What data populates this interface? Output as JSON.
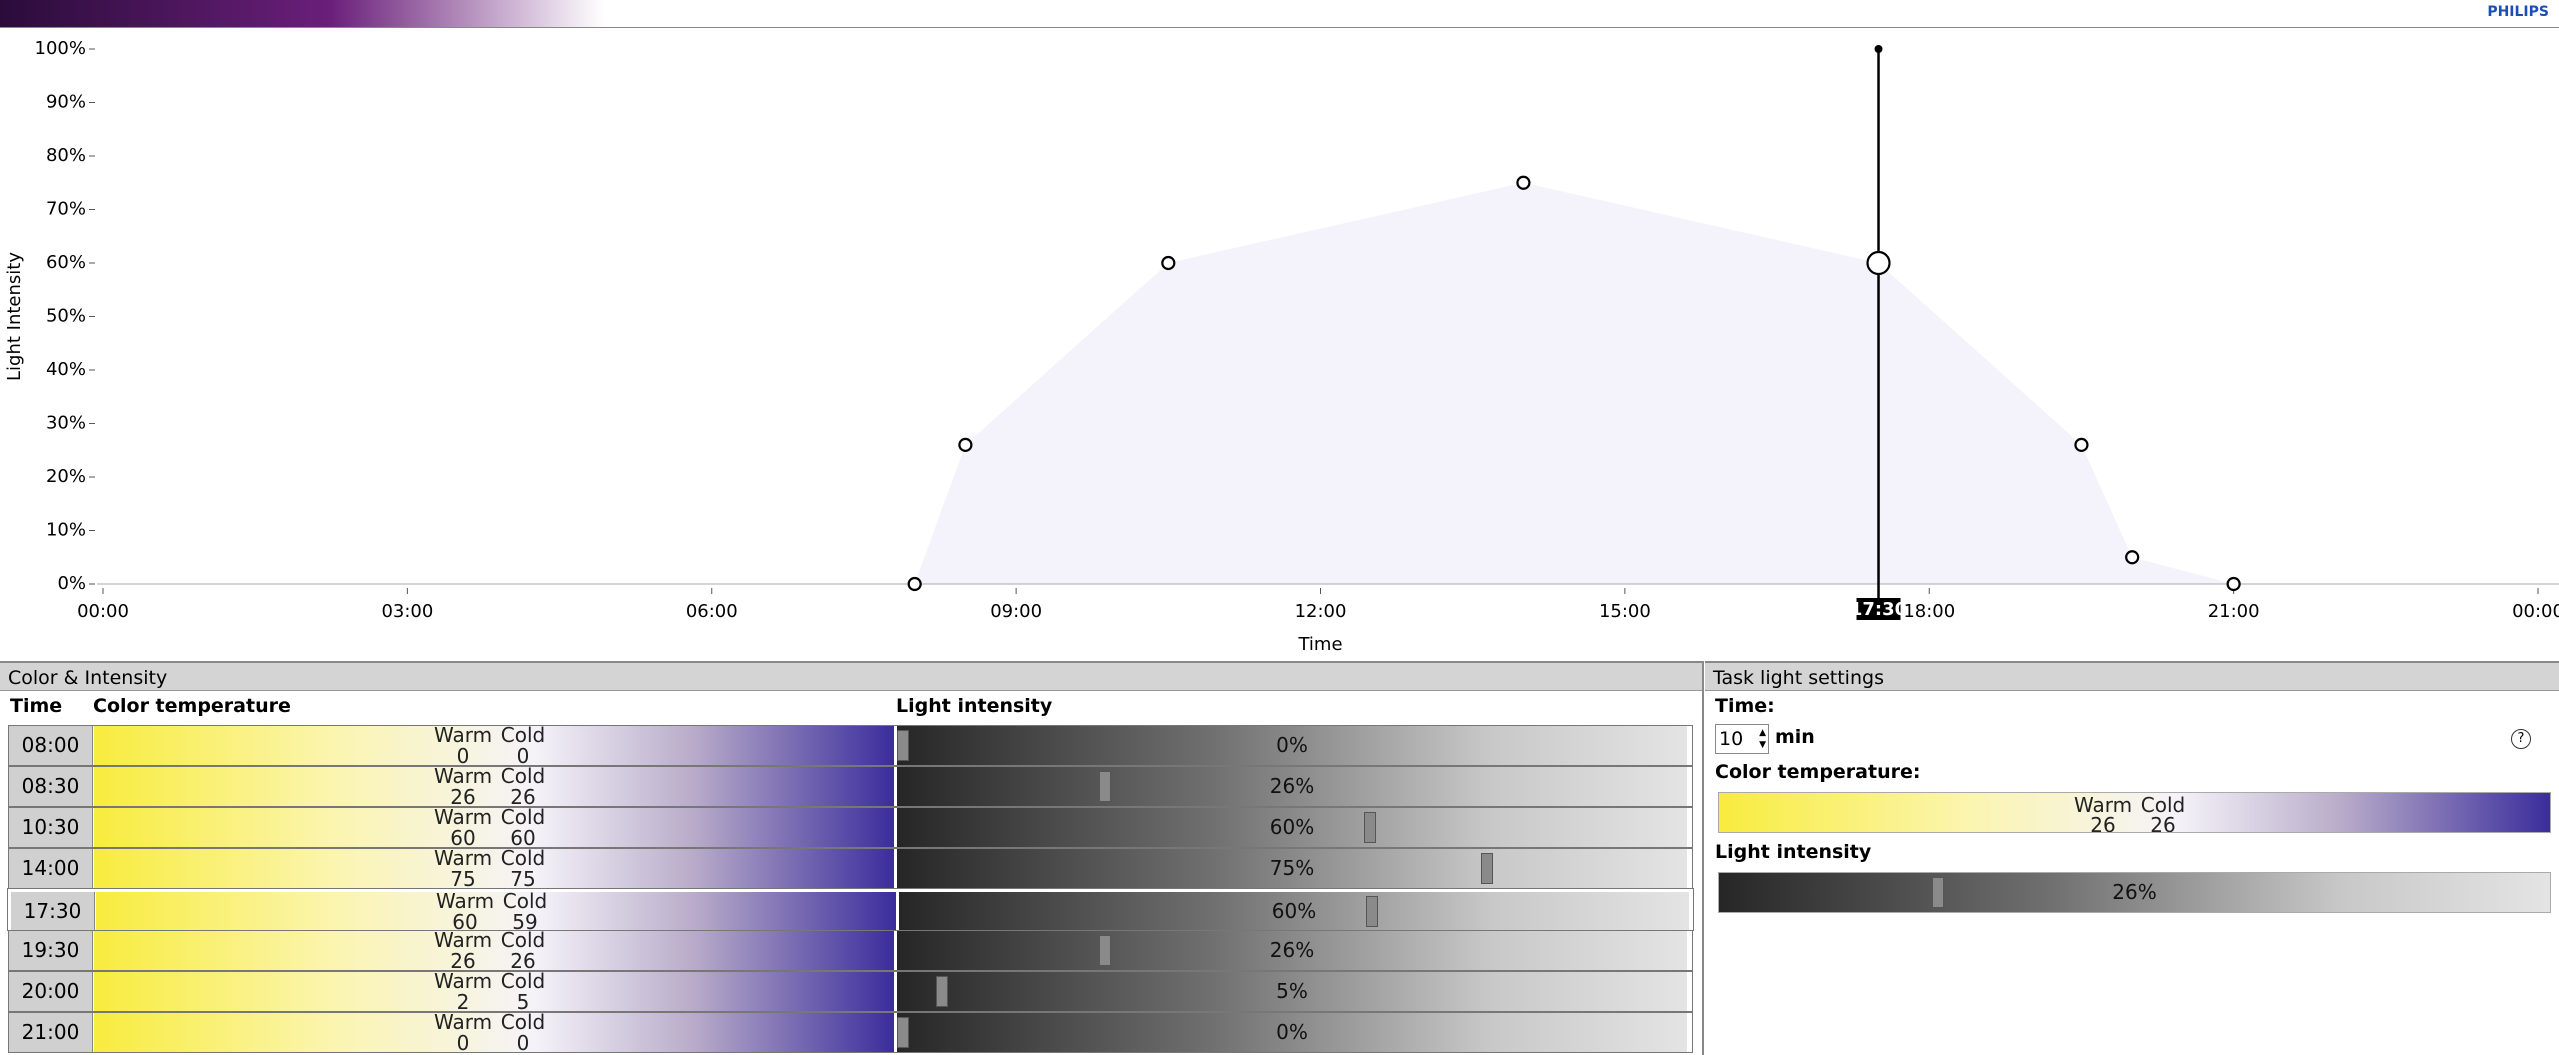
{
  "header": {
    "brand": "PHILIPS"
  },
  "chart_data": {
    "type": "area",
    "y_label": "Light Intensity",
    "x_label": "Time",
    "x": [
      8,
      8.5,
      10.5,
      14,
      17.5,
      19.5,
      20,
      21
    ],
    "values": [
      0,
      26,
      60,
      75,
      60,
      26,
      5,
      0
    ],
    "xlim": [
      0,
      24
    ],
    "xticks": [
      {
        "value": 0,
        "label": "00:00"
      },
      {
        "value": 3,
        "label": "03:00"
      },
      {
        "value": 6,
        "label": "06:00"
      },
      {
        "value": 9,
        "label": "09:00"
      },
      {
        "value": 12,
        "label": "12:00"
      },
      {
        "value": 15,
        "label": "15:00"
      },
      {
        "value": 18,
        "label": "18:00"
      },
      {
        "value": 21,
        "label": "21:00"
      },
      {
        "value": 24,
        "label": "00:00"
      }
    ],
    "ylim": [
      0,
      100
    ],
    "yticks": [
      {
        "value": 0,
        "label": "0%"
      },
      {
        "value": 10,
        "label": "10%"
      },
      {
        "value": 20,
        "label": "20%"
      },
      {
        "value": 30,
        "label": "30%"
      },
      {
        "value": 40,
        "label": "40%"
      },
      {
        "value": 50,
        "label": "50%"
      },
      {
        "value": 60,
        "label": "60%"
      },
      {
        "value": 70,
        "label": "70%"
      },
      {
        "value": 80,
        "label": "80%"
      },
      {
        "value": 90,
        "label": "90%"
      },
      {
        "value": 100,
        "label": "100%"
      }
    ],
    "cursor": {
      "value": 17.5,
      "label": "17:30"
    },
    "fill": "#f4f2fa",
    "color": "#000000"
  },
  "color_intensity": {
    "title": "Color & Intensity",
    "columns": [
      "Time",
      "Color temperature",
      "Light intensity"
    ],
    "warm_label": "Warm",
    "cold_label": "Cold",
    "selected_row": 4,
    "rows": [
      {
        "time": "08:00",
        "warm": 0,
        "cold": 0,
        "intensity": 0,
        "intensity_label": "0%"
      },
      {
        "time": "08:30",
        "warm": 26,
        "cold": 26,
        "intensity": 26,
        "intensity_label": "26%"
      },
      {
        "time": "10:30",
        "warm": 60,
        "cold": 60,
        "intensity": 60,
        "intensity_label": "60%"
      },
      {
        "time": "14:00",
        "warm": 75,
        "cold": 75,
        "intensity": 75,
        "intensity_label": "75%"
      },
      {
        "time": "17:30",
        "warm": 60,
        "cold": 59,
        "intensity": 60,
        "intensity_label": "60%"
      },
      {
        "time": "19:30",
        "warm": 26,
        "cold": 26,
        "intensity": 26,
        "intensity_label": "26%"
      },
      {
        "time": "20:00",
        "warm": 2,
        "cold": 5,
        "intensity": 5,
        "intensity_label": "5%"
      },
      {
        "time": "21:00",
        "warm": 0,
        "cold": 0,
        "intensity": 0,
        "intensity_label": "0%"
      }
    ]
  },
  "task_light": {
    "title": "Task light settings",
    "time_label": "Time:",
    "time": 10,
    "unit": "min",
    "help": "?",
    "color_label": "Color temperature:",
    "warm": 26,
    "cold": 26,
    "intensity_label": "Light intensity",
    "intensity": 26,
    "intensity_text": "26%"
  }
}
